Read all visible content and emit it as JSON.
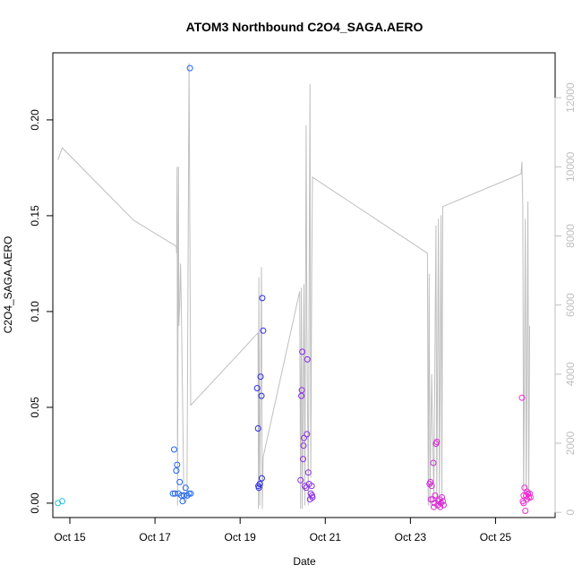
{
  "chart_data": {
    "type": "scatter",
    "title": "ATOM3 Northbound C2O4_SAGA.AERO",
    "xlabel": "Date",
    "ylabel": "C2O4_SAGA.AERO",
    "xlim": [
      14.6,
      26.4
    ],
    "ylim": [
      -0.0075,
      0.235
    ],
    "y2lim": [
      -150,
      13300
    ],
    "x_ticks": [
      {
        "v": 15,
        "label": "Oct 15"
      },
      {
        "v": 17,
        "label": "Oct 17"
      },
      {
        "v": 19,
        "label": "Oct 19"
      },
      {
        "v": 21,
        "label": "Oct 21"
      },
      {
        "v": 23,
        "label": "Oct 23"
      },
      {
        "v": 25,
        "label": "Oct 25"
      }
    ],
    "y_ticks": [
      {
        "v": 0.0,
        "label": "0.00"
      },
      {
        "v": 0.05,
        "label": "0.05"
      },
      {
        "v": 0.1,
        "label": "0.10"
      },
      {
        "v": 0.15,
        "label": "0.15"
      },
      {
        "v": 0.2,
        "label": "0.20"
      }
    ],
    "y2_ticks": [
      {
        "v": 0,
        "label": "0"
      },
      {
        "v": 2000,
        "label": "2000"
      },
      {
        "v": 4000,
        "label": "4000"
      },
      {
        "v": 6000,
        "label": "6000"
      },
      {
        "v": 8000,
        "label": "8000"
      },
      {
        "v": 10000,
        "label": "10000"
      },
      {
        "v": 12000,
        "label": "12000"
      }
    ],
    "grid": false,
    "altitude_color": "#bfbfbf",
    "altitude_series": [
      [
        14.72,
        10200
      ],
      [
        14.82,
        10550
      ],
      [
        16.5,
        8450
      ],
      [
        17.5,
        7700
      ],
      [
        17.51,
        7500
      ],
      [
        17.52,
        10000
      ],
      [
        17.53,
        200
      ],
      [
        17.55,
        10000
      ],
      [
        17.56,
        5400
      ],
      [
        17.58,
        6000
      ],
      [
        17.6,
        7200
      ],
      [
        17.62,
        5800
      ],
      [
        17.68,
        300
      ],
      [
        17.72,
        300
      ],
      [
        17.75,
        400
      ],
      [
        17.8,
        13000
      ],
      [
        17.84,
        3100
      ],
      [
        19.2,
        4900
      ],
      [
        19.42,
        5200
      ],
      [
        19.43,
        100
      ],
      [
        19.44,
        6800
      ],
      [
        19.46,
        200
      ],
      [
        19.5,
        7100
      ],
      [
        19.52,
        100
      ],
      [
        19.54,
        1600
      ],
      [
        20.4,
        6400
      ],
      [
        20.42,
        100
      ],
      [
        20.44,
        6500
      ],
      [
        20.46,
        100
      ],
      [
        20.5,
        6600
      ],
      [
        20.52,
        200
      ],
      [
        20.55,
        11200
      ],
      [
        20.57,
        5200
      ],
      [
        20.6,
        200
      ],
      [
        20.64,
        12400
      ],
      [
        20.66,
        1000
      ],
      [
        20.68,
        6800
      ],
      [
        20.7,
        9700
      ],
      [
        23.4,
        7500
      ],
      [
        23.42,
        200
      ],
      [
        23.44,
        6900
      ],
      [
        23.46,
        200
      ],
      [
        23.5,
        4000
      ],
      [
        23.55,
        400
      ],
      [
        23.6,
        8300
      ],
      [
        23.62,
        200
      ],
      [
        23.66,
        8500
      ],
      [
        23.68,
        200
      ],
      [
        23.72,
        8600
      ],
      [
        23.74,
        200
      ],
      [
        23.76,
        8850
      ],
      [
        25.6,
        9800
      ],
      [
        25.62,
        10150
      ],
      [
        25.64,
        8800
      ],
      [
        25.66,
        200
      ],
      [
        25.7,
        8500
      ],
      [
        25.72,
        300
      ],
      [
        25.76,
        9000
      ],
      [
        25.78,
        300
      ],
      [
        25.8,
        5400
      ]
    ],
    "series": [
      {
        "color": "#22bfd6",
        "points": [
          [
            14.72,
            0.0
          ],
          [
            14.82,
            0.001
          ]
        ]
      },
      {
        "color": "#2266ee",
        "points": [
          [
            17.42,
            0.005
          ],
          [
            17.45,
            0.028
          ],
          [
            17.47,
            0.005
          ],
          [
            17.5,
            0.017
          ],
          [
            17.52,
            0.02
          ],
          [
            17.55,
            0.005
          ],
          [
            17.58,
            0.011
          ],
          [
            17.62,
            0.004
          ],
          [
            17.65,
            0.001
          ],
          [
            17.68,
            0.004
          ],
          [
            17.72,
            0.008
          ],
          [
            17.76,
            0.004
          ],
          [
            17.8,
            0.005
          ],
          [
            17.82,
            0.227
          ],
          [
            17.84,
            0.005
          ]
        ]
      },
      {
        "color": "#2a2ae6",
        "points": [
          [
            19.4,
            0.06
          ],
          [
            19.42,
            0.039
          ],
          [
            19.43,
            0.009
          ],
          [
            19.44,
            0.008
          ],
          [
            19.46,
            0.01
          ],
          [
            19.48,
            0.066
          ],
          [
            19.5,
            0.056
          ],
          [
            19.51,
            0.013
          ],
          [
            19.52,
            0.107
          ],
          [
            19.54,
            0.09
          ]
        ]
      },
      {
        "color": "#8a2ae6",
        "points": [
          [
            20.42,
            0.012
          ],
          [
            20.44,
            0.056
          ],
          [
            20.45,
            0.059
          ],
          [
            20.46,
            0.079
          ],
          [
            20.48,
            0.023
          ],
          [
            20.49,
            0.03
          ],
          [
            20.5,
            0.034
          ],
          [
            20.52,
            0.009
          ],
          [
            20.55,
            0.008
          ],
          [
            20.57,
            0.036
          ],
          [
            20.58,
            0.075
          ],
          [
            20.6,
            0.016
          ],
          [
            20.62,
            0.01
          ],
          [
            20.64,
            0.002
          ],
          [
            20.66,
            0.005
          ],
          [
            20.68,
            0.009
          ],
          [
            20.69,
            0.004
          ],
          [
            20.7,
            0.003
          ]
        ]
      },
      {
        "color": "#d62ad6",
        "points": [
          [
            23.45,
            0.01
          ],
          [
            23.47,
            0.011
          ],
          [
            23.5,
            0.009
          ],
          [
            23.52,
            0.002
          ],
          [
            23.54,
            0.021
          ],
          [
            23.55,
            -0.002
          ],
          [
            23.58,
            0.004
          ],
          [
            23.6,
            0.031
          ],
          [
            23.62,
            0.032
          ],
          [
            23.64,
            -0.001
          ],
          [
            23.66,
            0.001
          ],
          [
            23.68,
            0.002
          ],
          [
            23.7,
            -0.002
          ],
          [
            23.72,
            0.0
          ],
          [
            23.74,
            0.003
          ],
          [
            23.76,
            0.001
          ],
          [
            23.78,
            -0.001
          ],
          [
            23.48,
            0.002
          ],
          [
            23.56,
            0.0
          ]
        ]
      },
      {
        "color": "#f22ad6",
        "points": [
          [
            25.62,
            0.055
          ],
          [
            25.64,
            0.001
          ],
          [
            25.66,
            0.004
          ],
          [
            25.68,
            0.008
          ],
          [
            25.7,
            -0.004
          ],
          [
            25.72,
            0.004
          ],
          [
            25.74,
            0.002
          ],
          [
            25.76,
            0.005
          ],
          [
            25.78,
            0.003
          ],
          [
            25.8,
            0.005
          ],
          [
            25.82,
            0.003
          ],
          [
            25.66,
            0.0
          ],
          [
            25.74,
            0.006
          ]
        ]
      }
    ]
  }
}
